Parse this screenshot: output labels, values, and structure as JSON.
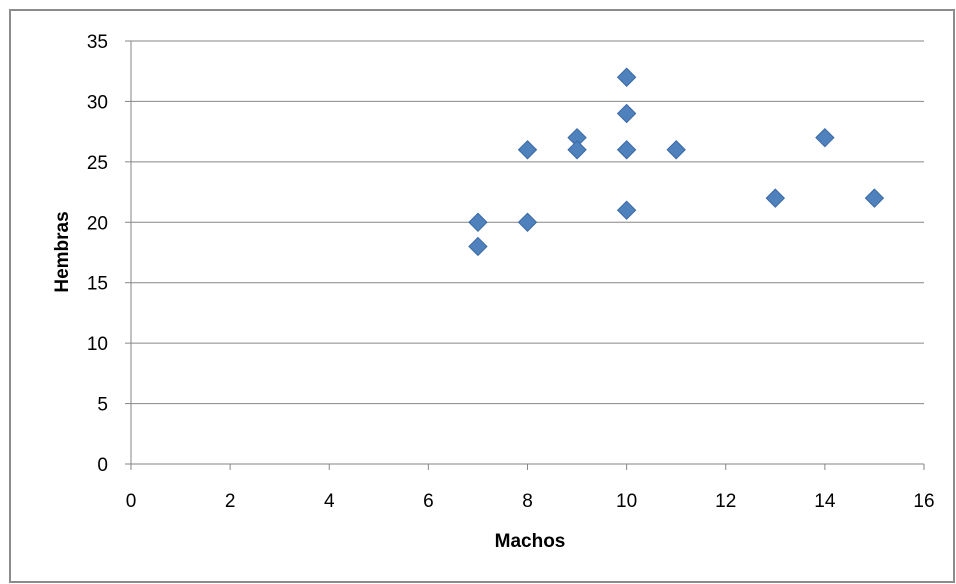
{
  "chart_data": {
    "type": "scatter",
    "xlabel": "Machos",
    "ylabel": "Hembras",
    "xlim": [
      0,
      16
    ],
    "ylim": [
      0,
      35
    ],
    "x_ticks": [
      "0",
      "2",
      "4",
      "6",
      "8",
      "10",
      "12",
      "14",
      "16"
    ],
    "y_ticks": [
      "0",
      "5",
      "10",
      "15",
      "20",
      "25",
      "30",
      "35"
    ],
    "grid": "horizontal",
    "legend": "none",
    "marker": "diamond",
    "marker_color": "#4f81bd",
    "series": [
      {
        "points": [
          {
            "x": 7,
            "y": 20
          },
          {
            "x": 7,
            "y": 18
          },
          {
            "x": 8,
            "y": 26
          },
          {
            "x": 8,
            "y": 20
          },
          {
            "x": 9,
            "y": 27
          },
          {
            "x": 9,
            "y": 26
          },
          {
            "x": 10,
            "y": 32
          },
          {
            "x": 10,
            "y": 29
          },
          {
            "x": 10,
            "y": 26
          },
          {
            "x": 10,
            "y": 21
          },
          {
            "x": 11,
            "y": 26
          },
          {
            "x": 13,
            "y": 22
          },
          {
            "x": 14,
            "y": 27
          },
          {
            "x": 15,
            "y": 22
          }
        ]
      }
    ]
  }
}
